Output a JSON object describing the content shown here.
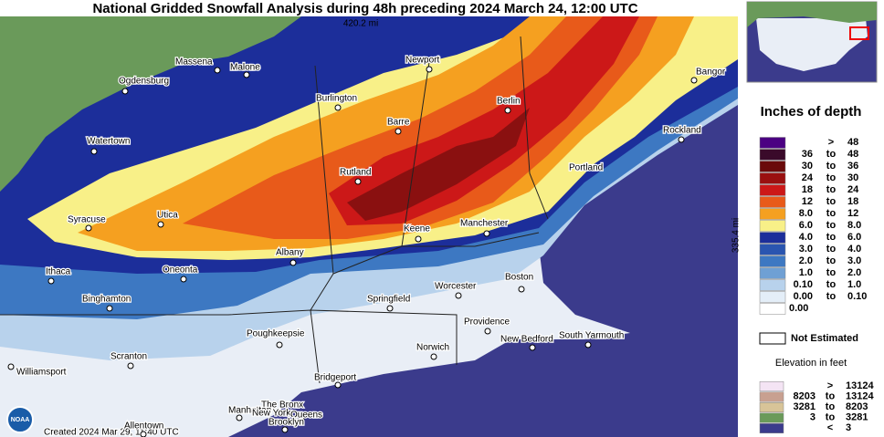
{
  "header": {
    "title": "National Gridded Snowfall Analysis during 48h preceding 2024 March 24, 12:00 UTC",
    "scale_x": "420.2 mi",
    "scale_y": "335.4 mi"
  },
  "footer": {
    "created": "Created 2024 Mar 29, 11:40 UTC",
    "logo": "NOAA"
  },
  "cities": [
    "Massena",
    "Malone",
    "Ogdensburg",
    "Newport",
    "Bangor",
    "Burlington",
    "Berlin",
    "Watertown",
    "Barre",
    "Rockland",
    "Portland",
    "Rutland",
    "Syracuse",
    "Utica",
    "Keene",
    "Manchester",
    "Albany",
    "Ithaca",
    "Oneonta",
    "Boston",
    "Binghamton",
    "Springfield",
    "Worcester",
    "Poughkeepsie",
    "Providence",
    "New Bedford",
    "South Yarmouth",
    "Norwich",
    "Scranton",
    "Williamsport",
    "Bridgeport",
    "The Bronx",
    "Manhattan",
    "New York",
    "Queens",
    "Brooklyn",
    "Allentown"
  ],
  "legend": {
    "title": "Inches of depth",
    "rows": [
      {
        "labels": [
          ">",
          "48"
        ],
        "color": "#4b0082"
      },
      {
        "labels": [
          "36",
          "to",
          "48"
        ],
        "color": "#3a0a2a"
      },
      {
        "labels": [
          "30",
          "to",
          "36"
        ],
        "color": "#6a0a0a"
      },
      {
        "labels": [
          "24",
          "to",
          "30"
        ],
        "color": "#9a1010"
      },
      {
        "labels": [
          "18",
          "to",
          "24"
        ],
        "color": "#cc1818"
      },
      {
        "labels": [
          "12",
          "to",
          "18"
        ],
        "color": "#e85a1a"
      },
      {
        "labels": [
          "8.0",
          "to",
          "12"
        ],
        "color": "#f5a020"
      },
      {
        "labels": [
          "6.0",
          "to",
          "8.0"
        ],
        "color": "#f8f088"
      },
      {
        "labels": [
          "4.0",
          "to",
          "6.0"
        ],
        "color": "#1c2e9a"
      },
      {
        "labels": [
          "3.0",
          "to",
          "4.0"
        ],
        "color": "#2a55b0"
      },
      {
        "labels": [
          "2.0",
          "to",
          "3.0"
        ],
        "color": "#3d78c2"
      },
      {
        "labels": [
          "1.0",
          "to",
          "2.0"
        ],
        "color": "#6fa0d4"
      },
      {
        "labels": [
          "0.10",
          "to",
          "1.0"
        ],
        "color": "#b8d2ec"
      },
      {
        "labels": [
          "0.00",
          "to",
          "0.10"
        ],
        "color": "#e4eef8"
      },
      {
        "labels": [
          "0.00"
        ],
        "color": "#ffffff"
      }
    ],
    "not_estimated": "Not Estimated"
  },
  "elevation": {
    "title": "Elevation in feet",
    "rows": [
      {
        "labels": [
          ">",
          "13124"
        ],
        "color": "#f4e4f4"
      },
      {
        "labels": [
          "8203",
          "to",
          "13124"
        ],
        "color": "#c8a090"
      },
      {
        "labels": [
          "3281",
          "to",
          "8203"
        ],
        "color": "#d8c498"
      },
      {
        "labels": [
          "3",
          "to",
          "3281"
        ],
        "color": "#6a9a5a"
      },
      {
        "labels": [
          "<",
          "3"
        ],
        "color": "#3b3b8c"
      }
    ]
  }
}
